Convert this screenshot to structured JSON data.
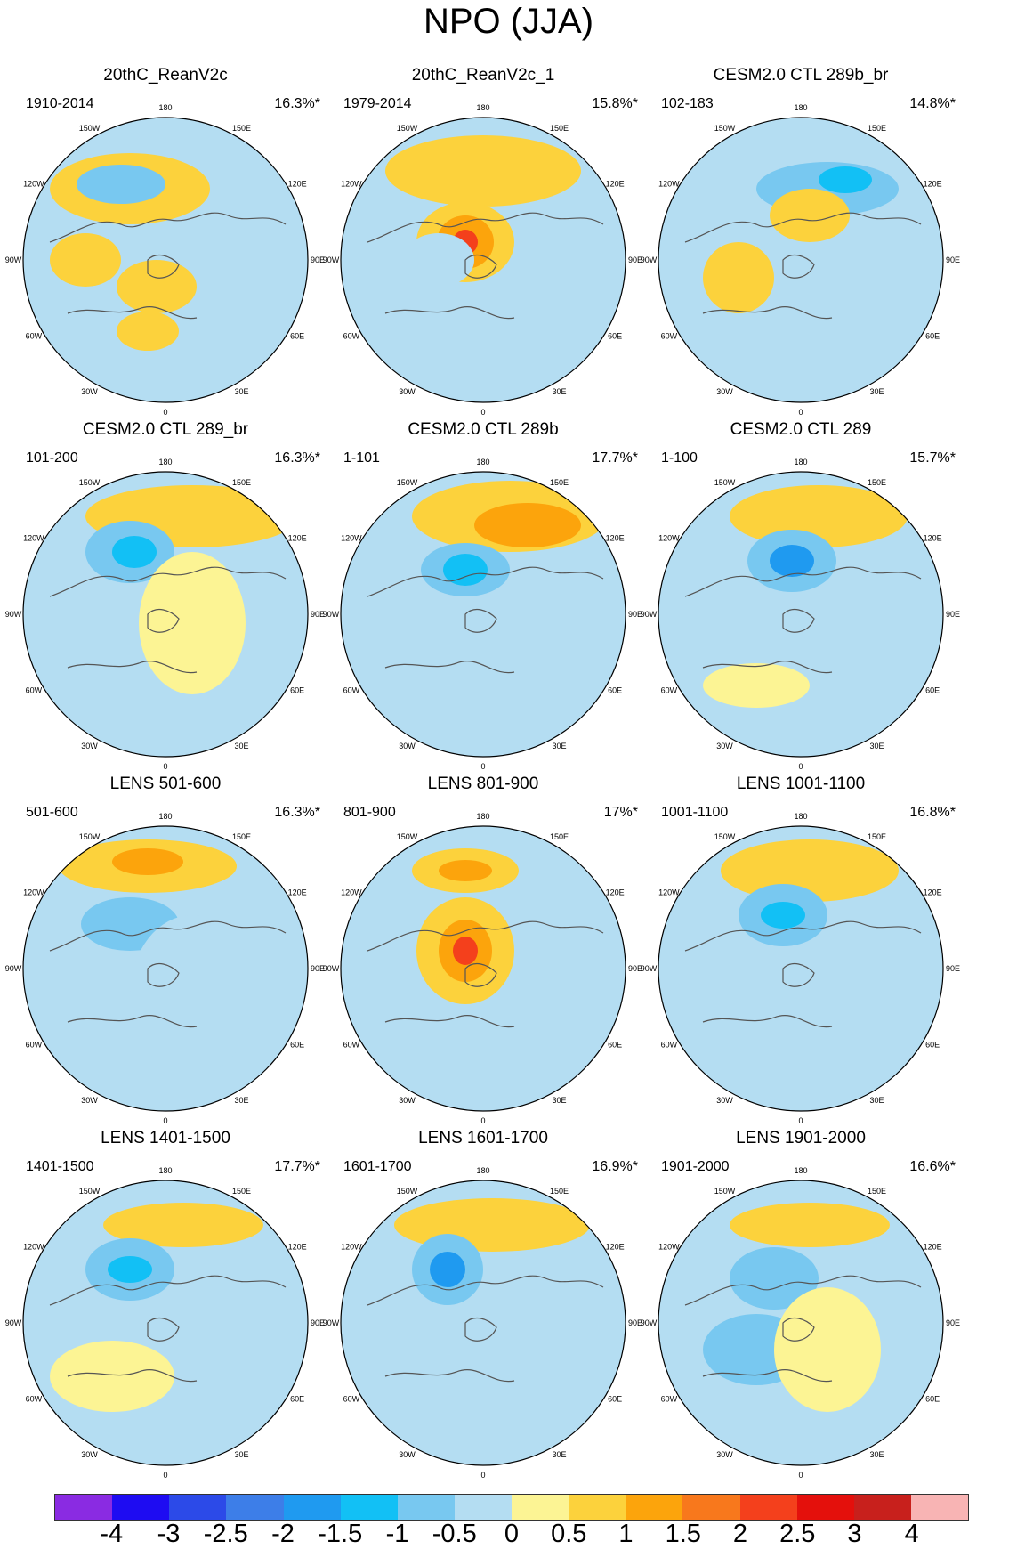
{
  "title": "NPO (JJA)",
  "lon_labels": [
    "180",
    "150E",
    "120E",
    "90E",
    "60E",
    "30E",
    "0",
    "30W",
    "60W",
    "90W",
    "120W",
    "150W"
  ],
  "panels": [
    {
      "title": "20thC_ReanV2c",
      "period": "1910-2014",
      "variance": "16.3%*"
    },
    {
      "title": "20thC_ReanV2c_1",
      "period": "1979-2014",
      "variance": "15.8%*"
    },
    {
      "title": "CESM2.0 CTL 289b_br",
      "period": "102-183",
      "variance": "14.8%*"
    },
    {
      "title": "CESM2.0 CTL 289_br",
      "period": "101-200",
      "variance": "16.3%*"
    },
    {
      "title": "CESM2.0 CTL 289b",
      "period": "1-101",
      "variance": "17.7%*"
    },
    {
      "title": "CESM2.0 CTL 289",
      "period": "1-100",
      "variance": "15.7%*"
    },
    {
      "title": "LENS 501-600",
      "period": "501-600",
      "variance": "16.3%*"
    },
    {
      "title": "LENS 801-900",
      "period": "801-900",
      "variance": "17%*"
    },
    {
      "title": "LENS 1001-1100",
      "period": "1001-1100",
      "variance": "16.8%*"
    },
    {
      "title": "LENS 1401-1500",
      "period": "1401-1500",
      "variance": "17.7%*"
    },
    {
      "title": "LENS 1601-1700",
      "period": "1601-1700",
      "variance": "16.9%*"
    },
    {
      "title": "LENS 1901-2000",
      "period": "1901-2000",
      "variance": "16.6%*"
    }
  ],
  "colorbar": {
    "ticks": [
      "-4",
      "-3",
      "-2.5",
      "-2",
      "-1.5",
      "-1",
      "-0.5",
      "0",
      "0.5",
      "1",
      "1.5",
      "2",
      "2.5",
      "3",
      "4"
    ],
    "colors": [
      "#8a2be2",
      "#1e0cf2",
      "#2c4ae8",
      "#3d7ee8",
      "#1f9af0",
      "#12c0f5",
      "#78c8f0",
      "#b4ddf2",
      "#fcf494",
      "#fcd23c",
      "#fca40c",
      "#f8781c",
      "#f4401c",
      "#e4100c",
      "#c8201c",
      "#f8b4b4"
    ]
  }
}
